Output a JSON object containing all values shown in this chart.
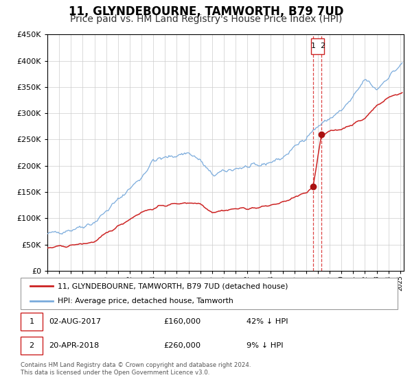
{
  "title": "11, GLYNDEBOURNE, TAMWORTH, B79 7UD",
  "subtitle": "Price paid vs. HM Land Registry's House Price Index (HPI)",
  "ylim": [
    0,
    450000
  ],
  "yticks": [
    0,
    50000,
    100000,
    150000,
    200000,
    250000,
    300000,
    350000,
    400000,
    450000
  ],
  "xlim_start": 1995.0,
  "xlim_end": 2025.3,
  "hpi_color": "#7aabdc",
  "price_color": "#cc2222",
  "marker_color": "#aa1111",
  "vline_color": "#dd4444",
  "grid_color": "#cccccc",
  "background_color": "#ffffff",
  "legend_label_price": "11, GLYNDEBOURNE, TAMWORTH, B79 7UD (detached house)",
  "legend_label_hpi": "HPI: Average price, detached house, Tamworth",
  "transaction1_date": "02-AUG-2017",
  "transaction1_price": "£160,000",
  "transaction1_pct": "42% ↓ HPI",
  "transaction2_date": "20-APR-2018",
  "transaction2_price": "£260,000",
  "transaction2_pct": "9% ↓ HPI",
  "footnote1": "Contains HM Land Registry data © Crown copyright and database right 2024.",
  "footnote2": "This data is licensed under the Open Government Licence v3.0.",
  "transaction1_year": 2017.583,
  "transaction1_value": 160000,
  "transaction2_year": 2018.3,
  "transaction2_value": 260000,
  "title_fontsize": 12,
  "subtitle_fontsize": 10
}
